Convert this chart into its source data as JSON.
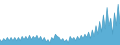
{
  "values": [
    5,
    3,
    6,
    4,
    7,
    4,
    7,
    4,
    7,
    4,
    7,
    4,
    8,
    5,
    8,
    5,
    9,
    5,
    8,
    6,
    9,
    5,
    8,
    4,
    7,
    3,
    5,
    2,
    7,
    5,
    10,
    8,
    7,
    4,
    6,
    3,
    5,
    2,
    8,
    5,
    7,
    4,
    8,
    5,
    9,
    6,
    10,
    7,
    12,
    6,
    14,
    8,
    18,
    10,
    22,
    12,
    28,
    15,
    35,
    18,
    25,
    10,
    30,
    18,
    38,
    20
  ],
  "fill_color": "#5bafd6",
  "line_color": "#4a9ec5",
  "background_color": "#ffffff",
  "ylim_min": 0,
  "ylim_max": 42
}
